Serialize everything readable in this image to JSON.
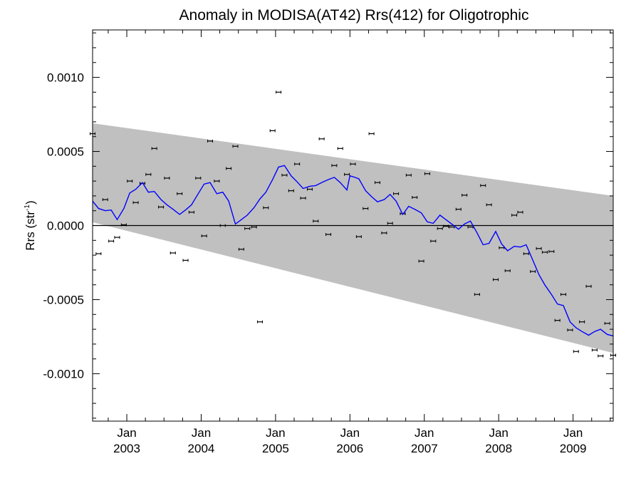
{
  "chart_data": {
    "type": "line",
    "title": "Anomaly in MODISA(AT42) Rrs(412) for Oligotrophic",
    "ylabel_main": "Rrs (str",
    "ylabel_sup": "-1",
    "ylabel_close": ")",
    "xlim": [
      2002.54,
      2009.54
    ],
    "ylim": [
      -0.00132,
      0.00132
    ],
    "yticks": [
      {
        "value": 0.001,
        "label": "0.0010"
      },
      {
        "value": 0.0005,
        "label": "0.0005"
      },
      {
        "value": 0.0,
        "label": "0.0000"
      },
      {
        "value": -0.0005,
        "label": "-0.0005"
      },
      {
        "value": -0.001,
        "label": "-0.0010"
      }
    ],
    "xticks": [
      {
        "value": 2003.0,
        "month": "Jan",
        "year": "2003"
      },
      {
        "value": 2004.0,
        "month": "Jan",
        "year": "2004"
      },
      {
        "value": 2005.0,
        "month": "Jan",
        "year": "2005"
      },
      {
        "value": 2006.0,
        "month": "Jan",
        "year": "2006"
      },
      {
        "value": 2007.0,
        "month": "Jan",
        "year": "2007"
      },
      {
        "value": 2008.0,
        "month": "Jan",
        "year": "2008"
      },
      {
        "value": 2009.0,
        "month": "Jan",
        "year": "2009"
      }
    ],
    "zero_line": 0.0,
    "band": {
      "color": "#c0c0c0",
      "upper": [
        [
          2002.54,
          0.00069
        ],
        [
          2009.54,
          0.0002
        ]
      ],
      "lower": [
        [
          2002.54,
          2.2e-05
        ],
        [
          2009.54,
          -0.00086
        ]
      ]
    },
    "points": {
      "color": "#000000",
      "data": [
        [
          2002.54,
          0.00062
        ],
        [
          2002.62,
          -0.00019
        ],
        [
          2002.71,
          0.000175
        ],
        [
          2002.79,
          -0.000105
        ],
        [
          2002.87,
          -8e-05
        ],
        [
          2002.96,
          5e-06
        ],
        [
          2003.04,
          0.0003
        ],
        [
          2003.12,
          0.000155
        ],
        [
          2003.21,
          0.000285
        ],
        [
          2003.29,
          0.000345
        ],
        [
          2003.37,
          0.00052
        ],
        [
          2003.46,
          0.000125
        ],
        [
          2003.54,
          0.00032
        ],
        [
          2003.62,
          -0.000185
        ],
        [
          2003.71,
          0.000215
        ],
        [
          2003.79,
          -0.000235
        ],
        [
          2003.87,
          9e-05
        ],
        [
          2003.96,
          0.00032
        ],
        [
          2004.04,
          -7e-05
        ],
        [
          2004.12,
          0.00057
        ],
        [
          2004.21,
          0.0003
        ],
        [
          2004.29,
          0.0
        ],
        [
          2004.37,
          0.000385
        ],
        [
          2004.46,
          0.000535
        ],
        [
          2004.54,
          -0.00016
        ],
        [
          2004.62,
          -2e-05
        ],
        [
          2004.71,
          -1e-05
        ],
        [
          2004.79,
          -0.00065
        ],
        [
          2004.87,
          0.00012
        ],
        [
          2004.96,
          0.00064
        ],
        [
          2005.04,
          0.0009
        ],
        [
          2005.12,
          0.00034
        ],
        [
          2005.21,
          0.000235
        ],
        [
          2005.29,
          0.000415
        ],
        [
          2005.37,
          0.000185
        ],
        [
          2005.46,
          0.000245
        ],
        [
          2005.54,
          3e-05
        ],
        [
          2005.62,
          0.000585
        ],
        [
          2005.71,
          -6e-05
        ],
        [
          2005.79,
          0.000405
        ],
        [
          2005.87,
          0.00052
        ],
        [
          2005.96,
          0.000345
        ],
        [
          2006.04,
          0.000415
        ],
        [
          2006.12,
          -7.5e-05
        ],
        [
          2006.21,
          0.000115
        ],
        [
          2006.29,
          0.00062
        ],
        [
          2006.37,
          0.00029
        ],
        [
          2006.46,
          -5e-05
        ],
        [
          2006.54,
          1.5e-05
        ],
        [
          2006.62,
          0.000215
        ],
        [
          2006.71,
          8e-05
        ],
        [
          2006.79,
          0.00034
        ],
        [
          2006.87,
          0.00019
        ],
        [
          2006.96,
          -0.00024
        ],
        [
          2007.04,
          0.00035
        ],
        [
          2007.12,
          -0.000105
        ],
        [
          2007.21,
          -2e-05
        ],
        [
          2007.29,
          -5e-06
        ],
        [
          2007.37,
          -1e-05
        ],
        [
          2007.46,
          0.00011
        ],
        [
          2007.54,
          0.000205
        ],
        [
          2007.62,
          -1e-05
        ],
        [
          2007.71,
          -0.000465
        ],
        [
          2007.79,
          0.00027
        ],
        [
          2007.87,
          0.00014
        ],
        [
          2007.96,
          -0.000365
        ],
        [
          2008.04,
          -0.00015
        ],
        [
          2008.12,
          -0.000305
        ],
        [
          2008.21,
          7e-05
        ],
        [
          2008.29,
          9e-05
        ],
        [
          2008.37,
          -0.00019
        ],
        [
          2008.46,
          -0.00031
        ],
        [
          2008.54,
          -0.000155
        ],
        [
          2008.62,
          -0.00018
        ],
        [
          2008.71,
          -0.000175
        ],
        [
          2008.79,
          -0.00064
        ],
        [
          2008.87,
          -0.000465
        ],
        [
          2008.96,
          -0.000705
        ],
        [
          2009.04,
          -0.00085
        ],
        [
          2009.12,
          -0.00065
        ],
        [
          2009.21,
          -0.00041
        ],
        [
          2009.29,
          -0.00084
        ],
        [
          2009.37,
          -0.00088
        ],
        [
          2009.46,
          -0.00066
        ],
        [
          2009.54,
          -0.000875
        ]
      ]
    },
    "series": [
      {
        "color": "#0000ff",
        "x": [
          2002.54,
          2002.62,
          2002.71,
          2002.79,
          2002.87,
          2002.96,
          2003.04,
          2003.12,
          2003.21,
          2003.29,
          2003.37,
          2003.46,
          2003.54,
          2003.62,
          2003.71,
          2003.79,
          2003.87,
          2003.96,
          2004.04,
          2004.12,
          2004.21,
          2004.29,
          2004.37,
          2004.46,
          2004.54,
          2004.62,
          2004.71,
          2004.79,
          2004.87,
          2004.96,
          2005.04,
          2005.12,
          2005.21,
          2005.29,
          2005.37,
          2005.46,
          2005.54,
          2005.62,
          2005.71,
          2005.79,
          2005.87,
          2005.96,
          2006.0,
          2006.04,
          2006.12,
          2006.21,
          2006.29,
          2006.37,
          2006.46,
          2006.54,
          2006.62,
          2006.71,
          2006.79,
          2006.87,
          2006.96,
          2007.04,
          2007.12,
          2007.21,
          2007.29,
          2007.37,
          2007.46,
          2007.54,
          2007.62,
          2007.71,
          2007.79,
          2007.87,
          2007.96,
          2008.04,
          2008.12,
          2008.21,
          2008.29,
          2008.37,
          2008.46,
          2008.54,
          2008.62,
          2008.71,
          2008.79,
          2008.87,
          2008.96,
          2009.04,
          2009.12,
          2009.21,
          2009.29,
          2009.37,
          2009.46,
          2009.54
        ],
        "values": [
          0.000165,
          0.000115,
          0.0001,
          0.000105,
          4e-05,
          0.000115,
          0.00022,
          0.000245,
          0.00029,
          0.000225,
          0.00023,
          0.000175,
          0.00014,
          0.00011,
          7.5e-05,
          0.000105,
          0.00014,
          0.000215,
          0.00028,
          0.00029,
          0.000215,
          0.000225,
          0.000165,
          1e-05,
          4e-05,
          7e-05,
          0.00012,
          0.00018,
          0.000225,
          0.00031,
          0.000395,
          0.000405,
          0.000335,
          0.000295,
          0.00025,
          0.000265,
          0.00027,
          0.00029,
          0.00031,
          0.000325,
          0.00029,
          0.00024,
          0.000335,
          0.00033,
          0.000315,
          0.000235,
          0.000195,
          0.00016,
          0.000175,
          0.00021,
          0.000165,
          7.5e-05,
          0.00013,
          0.00011,
          8.5e-05,
          2.5e-05,
          1.5e-05,
          7e-05,
          4e-05,
          1e-05,
          -2.5e-05,
          1e-05,
          3e-05,
          -5e-05,
          -0.00013,
          -0.00012,
          -4e-05,
          -0.000125,
          -0.00017,
          -0.00014,
          -0.000145,
          -0.00013,
          -0.000235,
          -0.00033,
          -0.0004,
          -0.000465,
          -0.00053,
          -0.00054,
          -0.00065,
          -0.00069,
          -0.000715,
          -0.00074,
          -0.000715,
          -0.0007,
          -0.000735,
          -0.000745
        ]
      }
    ]
  }
}
